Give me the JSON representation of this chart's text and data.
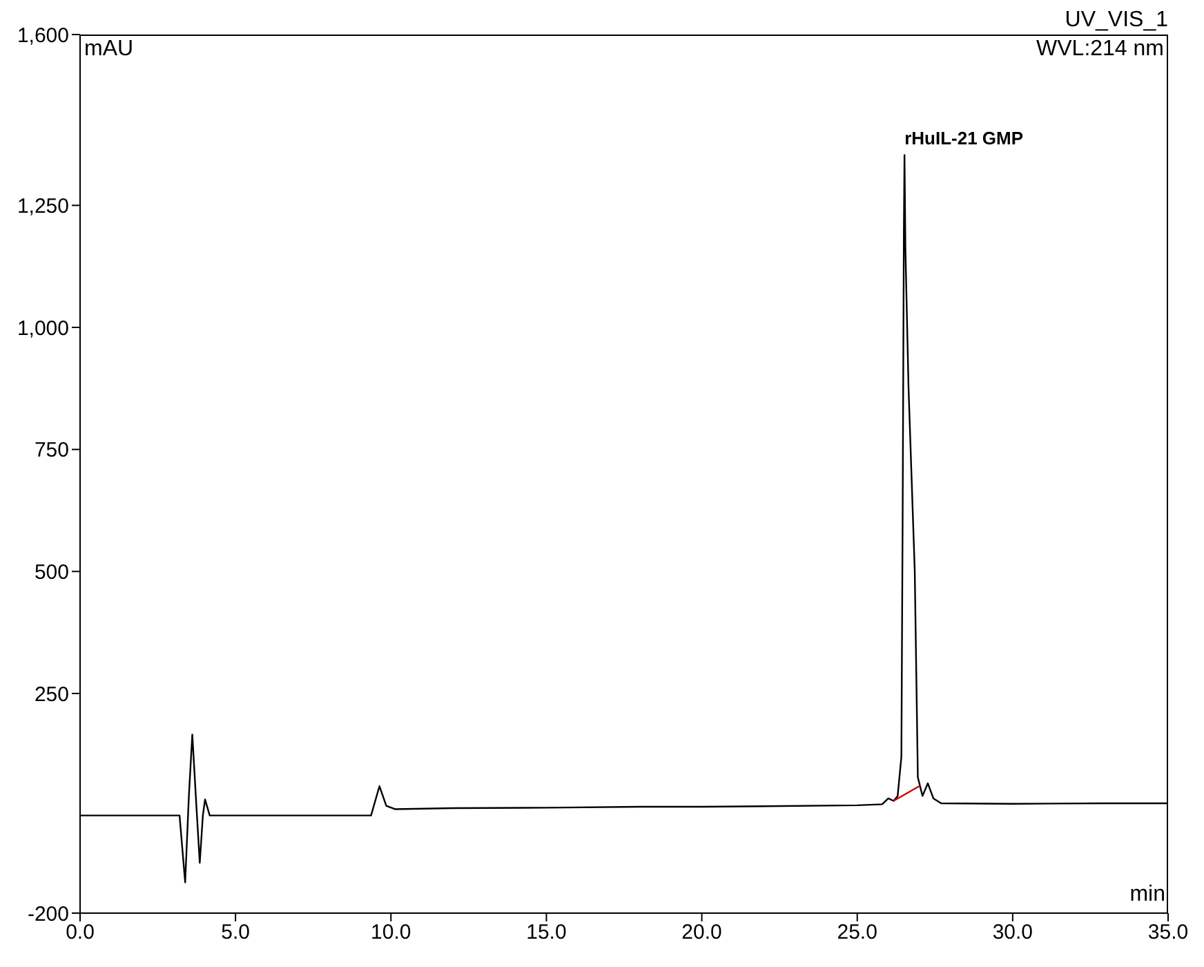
{
  "chart_data": {
    "type": "line",
    "title": "UV_VIS_1",
    "subtitle": "WVL:214 nm",
    "xlabel": "min",
    "ylabel": "mAU",
    "xlim": [
      0,
      35
    ],
    "ylim": [
      -200,
      1600
    ],
    "xticks": [
      {
        "value": 0,
        "label": "0.0"
      },
      {
        "value": 5,
        "label": "5.0"
      },
      {
        "value": 10,
        "label": "10.0"
      },
      {
        "value": 15,
        "label": "15.0"
      },
      {
        "value": 20,
        "label": "20.0"
      },
      {
        "value": 25,
        "label": "25.0"
      },
      {
        "value": 30,
        "label": "30.0"
      },
      {
        "value": 35,
        "label": "35.0"
      }
    ],
    "yticks": [
      {
        "value": -200,
        "label": "-200"
      },
      250,
      500,
      750,
      {
        "value": 1000,
        "label": "1,000"
      },
      {
        "value": 1250,
        "label": "1,250"
      },
      {
        "value": 1600,
        "label": "1,600"
      }
    ],
    "marker": "none",
    "line_style": "solid",
    "annotations": [
      {
        "text": "rHuIL-21 GMP",
        "x": 26.52,
        "y": 1353
      }
    ],
    "series": [
      {
        "color": "#000000",
        "x": [
          0,
          3.2,
          3.38,
          3.5,
          3.61,
          3.75,
          3.85,
          3.95,
          4.02,
          4.17,
          9.36,
          9.63,
          9.85,
          10.13,
          12,
          15,
          18,
          20,
          22,
          25,
          25.8,
          26.0,
          26.17,
          26.3,
          26.42,
          26.46,
          26.5,
          26.52,
          26.55,
          26.65,
          26.85,
          26.95,
          27.1,
          27.27,
          27.45,
          27.7,
          30,
          33,
          35
        ],
        "values": [
          0,
          0,
          -137,
          40,
          166,
          10,
          -97,
          0,
          33,
          0,
          0,
          60,
          20,
          13,
          15,
          16,
          18,
          18,
          19,
          21,
          23,
          35,
          30,
          40,
          120,
          600,
          1200,
          1353,
          1160,
          877,
          501,
          78,
          40,
          66,
          35,
          25,
          24,
          25,
          25
        ]
      },
      {
        "color": "#cc0000",
        "x": [
          26.17,
          27.02
        ],
        "values": [
          30,
          61
        ]
      }
    ]
  }
}
